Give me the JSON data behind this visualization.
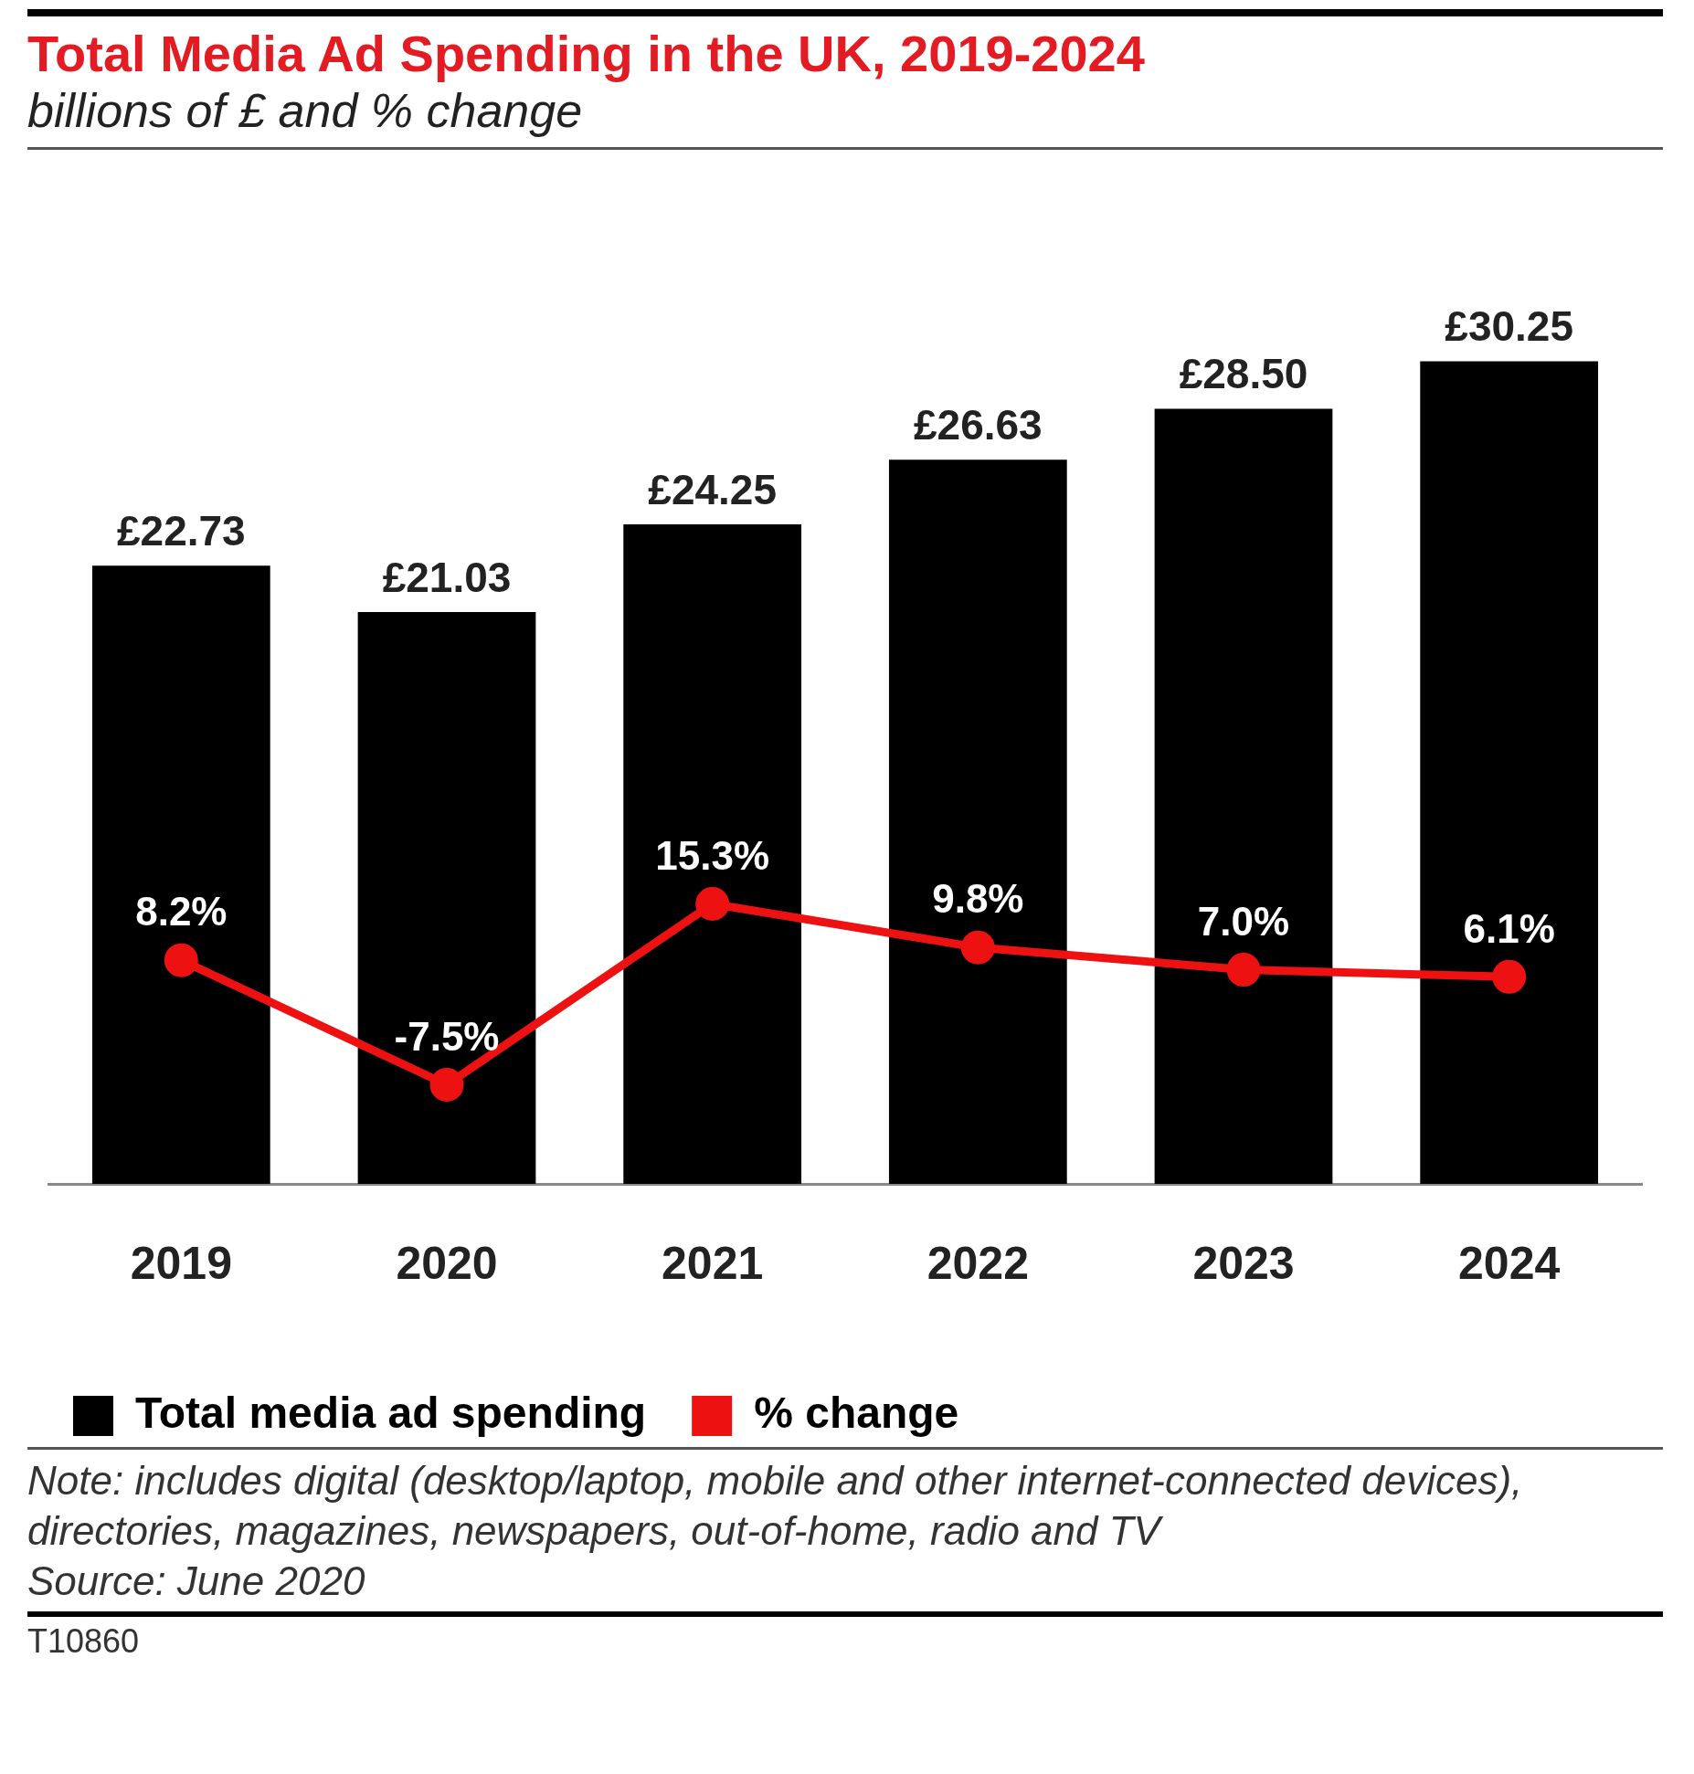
{
  "chart_data": {
    "type": "bar",
    "title": "Total Media Ad Spending in the UK, 2019-2024",
    "subtitle": "billions of £ and % change",
    "categories": [
      "2019",
      "2020",
      "2021",
      "2022",
      "2023",
      "2024"
    ],
    "series": [
      {
        "name": "Total media ad spending",
        "color": "#000000",
        "values": [
          22.73,
          21.03,
          24.25,
          26.63,
          28.5,
          30.25
        ],
        "value_labels": [
          "£22.73",
          "£21.03",
          "£24.25",
          "£26.63",
          "£28.50",
          "£30.25"
        ]
      },
      {
        "name": "% change",
        "type": "line",
        "axis": "y2",
        "color": "#ee1111",
        "values": [
          8.2,
          -7.5,
          15.3,
          9.8,
          7.0,
          6.1
        ],
        "value_labels": [
          "8.2%",
          "-7.5%",
          "15.3%",
          "9.8%",
          "7.0%",
          "6.1%"
        ]
      }
    ],
    "tick_labels": "x",
    "grid": false,
    "legend": "bottom",
    "marker": "circle",
    "annotations": [
      "Note: includes digital (desktop/laptop, mobile and other internet-connected devices), directories, magazines, newspapers, out-of-home, radio and TV",
      "Source: June 2020",
      "T10860"
    ]
  }
}
